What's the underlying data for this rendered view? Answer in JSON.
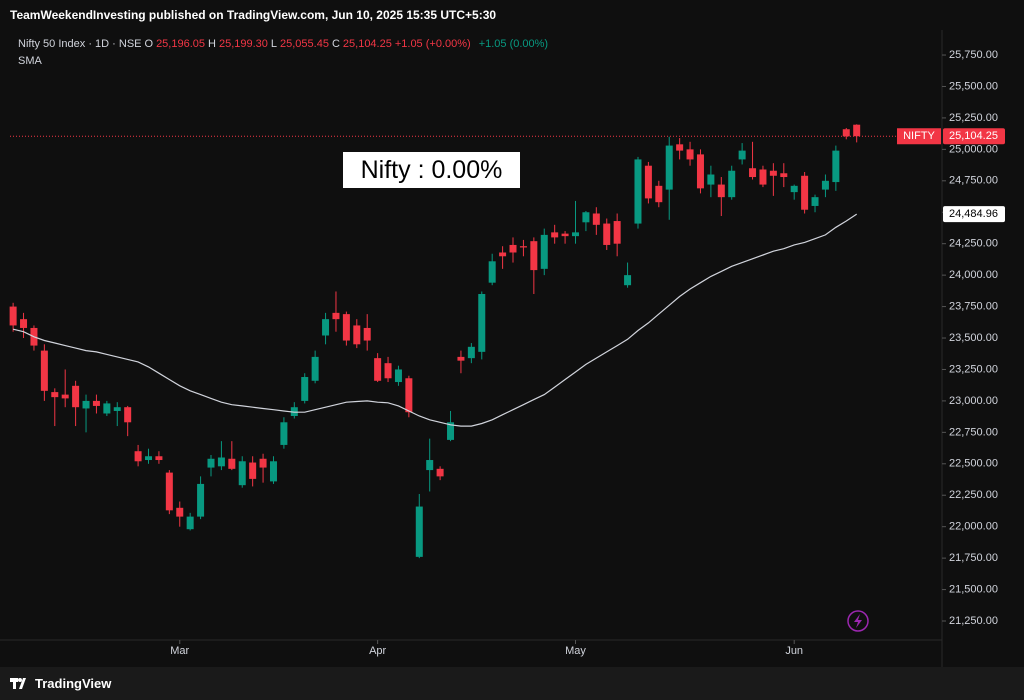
{
  "header": "TeamWeekendInvesting published on TradingView.com, Jun 10, 2025 15:35 UTC+5:30",
  "legend": {
    "symbol": "Nifty 50 Index · 1D · NSE",
    "open_label": "O",
    "open": "25,196.05",
    "high_label": "H",
    "high": "25,199.30",
    "low_label": "L",
    "low": "25,055.45",
    "close_label": "C",
    "close": "25,104.25",
    "change": "+1.05 (+0.00%)",
    "change2": "+1.05 (0.00%)"
  },
  "annotation": "Nifty : 0.00%",
  "footer": "TradingView",
  "chart_data": {
    "type": "candlestick",
    "up_color": "#089981",
    "down_color": "#f23645",
    "xlim": [
      -0.3,
      89
    ],
    "xticks": [
      {
        "value": 16,
        "label": "Mar"
      },
      {
        "value": 35,
        "label": "Apr"
      },
      {
        "value": 54,
        "label": "May"
      },
      {
        "value": 75,
        "label": "Jun"
      }
    ],
    "ylim": [
      21099,
      25949
    ],
    "yticks": [
      {
        "value": 21250,
        "label": "21,250.00"
      },
      {
        "value": 21500,
        "label": "21,500.00"
      },
      {
        "value": 21750,
        "label": "21,750.00"
      },
      {
        "value": 22000,
        "label": "22,000.00"
      },
      {
        "value": 22250,
        "label": "22,250.00"
      },
      {
        "value": 22500,
        "label": "22,500.00"
      },
      {
        "value": 22750,
        "label": "22,750.00"
      },
      {
        "value": 23000,
        "label": "23,000.00"
      },
      {
        "value": 23250,
        "label": "23,250.00"
      },
      {
        "value": 23500,
        "label": "23,500.00"
      },
      {
        "value": 23750,
        "label": "23,750.00"
      },
      {
        "value": 24000,
        "label": "24,000.00"
      },
      {
        "value": 24250,
        "label": "24,250.00"
      },
      {
        "value": 24500,
        "label": "24,500.00"
      },
      {
        "value": 24750,
        "label": "24,750.00"
      },
      {
        "value": 25000,
        "label": "25,000.00"
      },
      {
        "value": 25250,
        "label": "25,250.00"
      },
      {
        "value": 25500,
        "label": "25,500.00"
      },
      {
        "value": 25750,
        "label": "25,750.00"
      }
    ],
    "open": [
      23750,
      23650,
      23580,
      23400,
      23070,
      23050,
      23120,
      22940,
      23000,
      22900,
      22920,
      22950,
      22600,
      22530,
      22560,
      22430,
      22150,
      21980,
      22080,
      22470,
      22480,
      22540,
      22330,
      22510,
      22540,
      22360,
      22650,
      22880,
      23000,
      23160,
      23520,
      23700,
      23690,
      23600,
      23580,
      23340,
      23300,
      23150,
      23180,
      21760,
      22450,
      22460,
      22690,
      23350,
      23340,
      23390,
      23940,
      24180,
      24240,
      24230,
      24270,
      24050,
      24340,
      24330,
      24310,
      24420,
      24490,
      24410,
      24430,
      23920,
      24410,
      24870,
      24710,
      24680,
      25040,
      25000,
      24960,
      24720,
      24720,
      24620,
      24920,
      24850,
      24840,
      24830,
      24810,
      24660,
      24790,
      24550,
      24680,
      24740,
      25160,
      25196.05
    ],
    "high": [
      23780,
      23700,
      23600,
      23450,
      23100,
      23250,
      23160,
      23050,
      23050,
      23000,
      22990,
      22960,
      22650,
      22620,
      22600,
      22450,
      22200,
      22110,
      22400,
      22570,
      22680,
      22680,
      22560,
      22560,
      22580,
      22560,
      22870,
      22990,
      23220,
      23400,
      23700,
      23870,
      23710,
      23650,
      23690,
      23380,
      23350,
      23280,
      23200,
      22260,
      22700,
      22480,
      22920,
      23400,
      23460,
      23870,
      24170,
      24230,
      24300,
      24280,
      24300,
      24370,
      24400,
      24350,
      24590,
      24510,
      24540,
      24450,
      24490,
      24100,
      24940,
      24900,
      24750,
      25100,
      25090,
      25060,
      25000,
      24870,
      24780,
      24870,
      25050,
      25060,
      24870,
      24890,
      24890,
      24720,
      24820,
      24640,
      24800,
      25030,
      25170,
      25199.3
    ],
    "low": [
      23550,
      23500,
      23400,
      23000,
      22800,
      22950,
      22800,
      22750,
      22900,
      22880,
      22800,
      22720,
      22480,
      22500,
      22500,
      22100,
      22000,
      21970,
      22060,
      22400,
      22450,
      22450,
      22310,
      22320,
      22350,
      22340,
      22620,
      22860,
      22980,
      23140,
      23450,
      23550,
      23440,
      23420,
      23400,
      23150,
      23150,
      23120,
      22870,
      21750,
      22280,
      22370,
      22680,
      23220,
      23300,
      23330,
      23920,
      24050,
      24100,
      24150,
      23850,
      24000,
      24250,
      24250,
      24250,
      24350,
      24320,
      24200,
      24150,
      23900,
      24370,
      24570,
      24540,
      24440,
      24920,
      24870,
      24650,
      24620,
      24470,
      24600,
      24880,
      24760,
      24700,
      24630,
      24700,
      24600,
      24490,
      24500,
      24620,
      24670,
      25080,
      25055.45
    ],
    "close": [
      23600,
      23580,
      23440,
      23080,
      23030,
      23020,
      22950,
      23000,
      22960,
      22980,
      22950,
      22830,
      22520,
      22560,
      22530,
      22130,
      22080,
      22080,
      22340,
      22540,
      22550,
      22460,
      22520,
      22380,
      22470,
      22520,
      22830,
      22950,
      23190,
      23350,
      23650,
      23650,
      23480,
      23450,
      23480,
      23160,
      23180,
      23250,
      22910,
      22160,
      22530,
      22400,
      22830,
      23320,
      23430,
      23850,
      24110,
      24150,
      24180,
      24220,
      24040,
      24320,
      24300,
      24310,
      24340,
      24500,
      24400,
      24240,
      24250,
      24000,
      24920,
      24610,
      24580,
      25030,
      24990,
      24920,
      24690,
      24800,
      24620,
      24830,
      24990,
      24780,
      24720,
      24790,
      24780,
      24710,
      24520,
      24620,
      24750,
      24990,
      25103.2,
      25104.25
    ],
    "series": [
      {
        "name": "SMA",
        "color": "#d1d4dc",
        "values": [
          23570,
          23550,
          23510,
          23480,
          23460,
          23440,
          23420,
          23400,
          23390,
          23370,
          23350,
          23330,
          23310,
          23270,
          23220,
          23170,
          23120,
          23080,
          23050,
          23020,
          22990,
          22970,
          22960,
          22950,
          22940,
          22930,
          22920,
          22910,
          22910,
          22930,
          22950,
          22970,
          22990,
          22995,
          23000,
          22990,
          22985,
          22960,
          22920,
          22880,
          22850,
          22830,
          22810,
          22800,
          22800,
          22820,
          22850,
          22890,
          22930,
          22970,
          23010,
          23050,
          23110,
          23170,
          23230,
          23290,
          23340,
          23390,
          23440,
          23490,
          23560,
          23620,
          23690,
          23760,
          23830,
          23890,
          23940,
          23990,
          24030,
          24070,
          24100,
          24130,
          24160,
          24190,
          24210,
          24240,
          24260,
          24290,
          24320,
          24380,
          24430,
          24484.96
        ]
      }
    ],
    "last_price": {
      "name": "NIFTY",
      "value": 25104.25,
      "label": "25,104.25"
    },
    "sma_last": {
      "value": 24484.96,
      "label": "24,484.96"
    }
  }
}
